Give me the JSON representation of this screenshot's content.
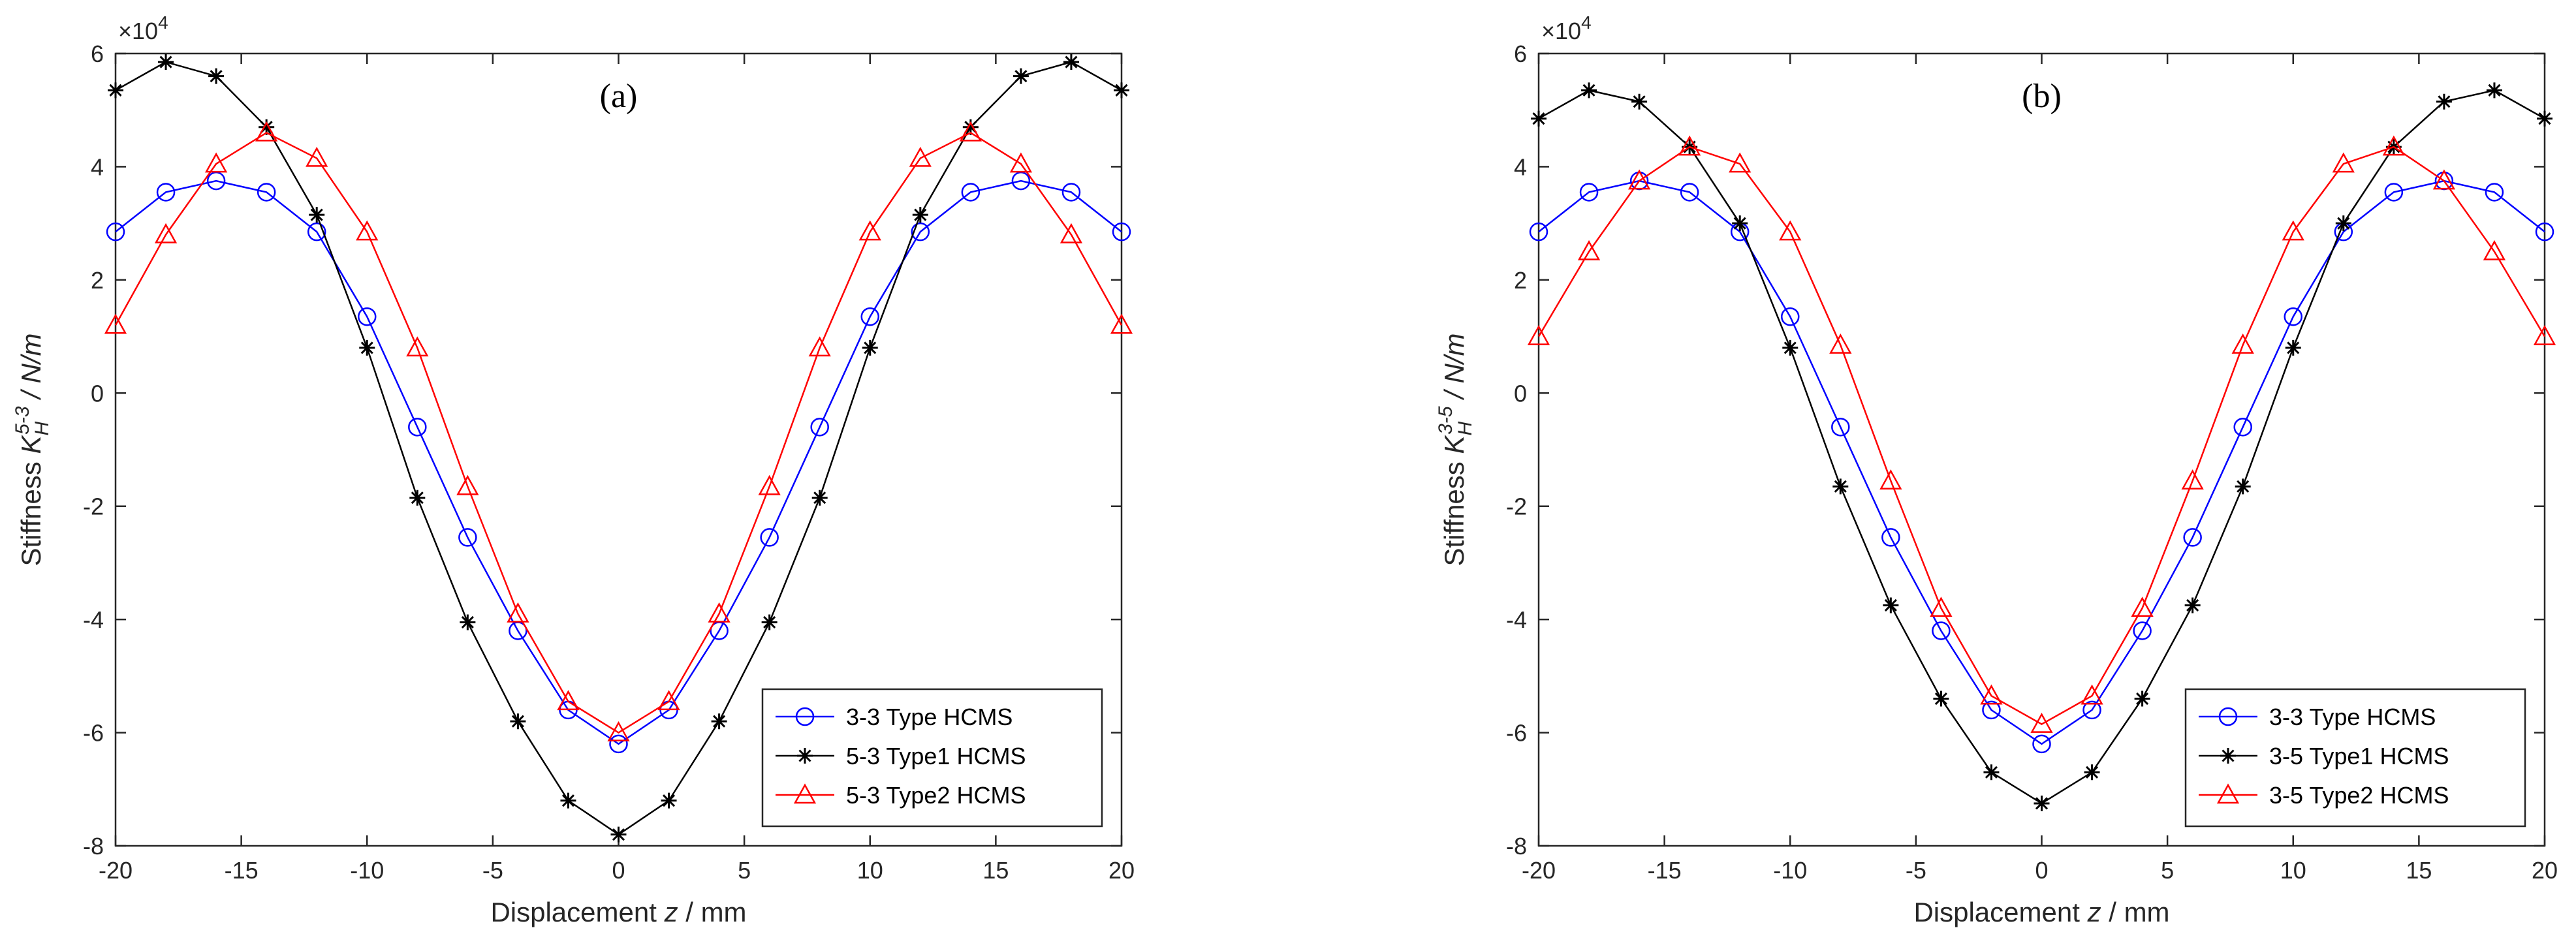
{
  "chart_data": [
    {
      "type": "line",
      "panel_label": "(a)",
      "title": "",
      "xlabel_prefix": "Displacement ",
      "xlabel_var": "z",
      "xlabel_suffix": " / mm",
      "ylabel_prefix": "Stiffness ",
      "ylabel_var": "K",
      "ylabel_sub": "H",
      "ylabel_sup": "5-3",
      "ylabel_suffix": " / N/m",
      "y_exponent_base": "×10",
      "y_exponent_power": "4",
      "xlim": [
        -20,
        20
      ],
      "ylim": [
        -8,
        6
      ],
      "xticks": [
        -20,
        -15,
        -10,
        -5,
        0,
        5,
        10,
        15,
        20
      ],
      "yticks": [
        -8,
        -6,
        -4,
        -2,
        0,
        2,
        4,
        6
      ],
      "x": [
        -20,
        -18,
        -16,
        -14,
        -12,
        -10,
        -8,
        -6,
        -4,
        -2,
        0,
        2,
        4,
        6,
        8,
        10,
        12,
        14,
        16,
        18,
        20
      ],
      "legend_position": "bottom-right",
      "series": [
        {
          "name": "3-3 Type HCMS",
          "color": "#0000ff",
          "marker": "circle",
          "values": [
            2.85,
            3.55,
            3.75,
            3.55,
            2.85,
            1.35,
            -0.6,
            -2.55,
            -4.2,
            -5.6,
            -6.2,
            -5.6,
            -4.2,
            -2.55,
            -0.6,
            1.35,
            2.85,
            3.55,
            3.75,
            3.55,
            2.85
          ]
        },
        {
          "name": "5-3 Type1 HCMS",
          "color": "#000000",
          "marker": "asterisk",
          "values": [
            5.35,
            5.85,
            5.6,
            4.7,
            3.15,
            0.8,
            -1.85,
            -4.05,
            -5.8,
            -7.2,
            -7.8,
            -7.2,
            -5.8,
            -4.05,
            -1.85,
            0.8,
            3.15,
            4.7,
            5.6,
            5.85,
            5.35
          ]
        },
        {
          "name": "5-3 Type2 HCMS",
          "color": "#ff0000",
          "marker": "triangle",
          "values": [
            1.2,
            2.8,
            4.05,
            4.6,
            4.15,
            2.85,
            0.8,
            -1.65,
            -3.9,
            -5.45,
            -6.0,
            -5.45,
            -3.9,
            -1.65,
            0.8,
            2.85,
            4.15,
            4.6,
            4.05,
            2.8,
            1.2
          ]
        }
      ]
    },
    {
      "type": "line",
      "panel_label": "(b)",
      "title": "",
      "xlabel_prefix": "Displacement ",
      "xlabel_var": "z",
      "xlabel_suffix": " / mm",
      "ylabel_prefix": "Stiffness ",
      "ylabel_var": "K",
      "ylabel_sub": "H",
      "ylabel_sup": "3-5",
      "ylabel_suffix": " / N/m",
      "y_exponent_base": "×10",
      "y_exponent_power": "4",
      "xlim": [
        -20,
        20
      ],
      "ylim": [
        -8,
        6
      ],
      "xticks": [
        -20,
        -15,
        -10,
        -5,
        0,
        5,
        10,
        15,
        20
      ],
      "yticks": [
        -8,
        -6,
        -4,
        -2,
        0,
        2,
        4,
        6
      ],
      "x": [
        -20,
        -18,
        -16,
        -14,
        -12,
        -10,
        -8,
        -6,
        -4,
        -2,
        0,
        2,
        4,
        6,
        8,
        10,
        12,
        14,
        16,
        18,
        20
      ],
      "legend_position": "bottom-right",
      "series": [
        {
          "name": "3-3 Type HCMS",
          "color": "#0000ff",
          "marker": "circle",
          "values": [
            2.85,
            3.55,
            3.75,
            3.55,
            2.85,
            1.35,
            -0.6,
            -2.55,
            -4.2,
            -5.6,
            -6.2,
            -5.6,
            -4.2,
            -2.55,
            -0.6,
            1.35,
            2.85,
            3.55,
            3.75,
            3.55,
            2.85
          ]
        },
        {
          "name": "3-5 Type1 HCMS",
          "color": "#000000",
          "marker": "asterisk",
          "values": [
            4.85,
            5.35,
            5.15,
            4.35,
            3.0,
            0.8,
            -1.65,
            -3.75,
            -5.4,
            -6.7,
            -7.25,
            -6.7,
            -5.4,
            -3.75,
            -1.65,
            0.8,
            3.0,
            4.35,
            5.15,
            5.35,
            4.85
          ]
        },
        {
          "name": "3-5 Type2 HCMS",
          "color": "#ff0000",
          "marker": "triangle",
          "values": [
            1.0,
            2.5,
            3.75,
            4.35,
            4.05,
            2.85,
            0.85,
            -1.55,
            -3.8,
            -5.35,
            -5.85,
            -5.35,
            -3.8,
            -1.55,
            0.85,
            2.85,
            4.05,
            4.35,
            3.75,
            2.5,
            1.0
          ]
        }
      ]
    }
  ]
}
